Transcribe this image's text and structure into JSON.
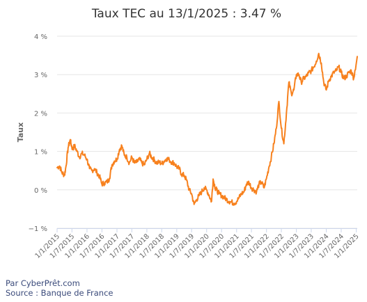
{
  "chart_data": {
    "type": "line",
    "title": "Taux TEC au 13/1/2025 : 3.47 %",
    "ylabel": "Taux",
    "xlabel": "",
    "ylim": [
      -1,
      4
    ],
    "y_ticks": [
      "−1 %",
      "0 %",
      "1 %",
      "2 %",
      "3 %",
      "4 %"
    ],
    "y_tick_values": [
      -1,
      0,
      1,
      2,
      3,
      4
    ],
    "x_tick_labels": [
      "1/1/2015",
      "1/7/2015",
      "1/1/2016",
      "1/7/2016",
      "1/1/2017",
      "1/7/2017",
      "1/1/2018",
      "1/7/2018",
      "1/1/2019",
      "1/7/2019",
      "1/1/2020",
      "1/7/2020",
      "1/1/2021",
      "1/7/2021",
      "1/1/2022",
      "1/7/2022",
      "1/1/2023",
      "1/7/2023",
      "1/1/2024",
      "1/7/2024",
      "1/1/2025"
    ],
    "x_range": [
      "2015-01-01",
      "2025-01-13"
    ],
    "grid": true,
    "line_color": "#f7811e",
    "series": [
      {
        "points": [
          [
            "2015-01-01",
            0.58
          ],
          [
            "2015-02-01",
            0.62
          ],
          [
            "2015-03-01",
            0.45
          ],
          [
            "2015-04-01",
            0.38
          ],
          [
            "2015-04-20",
            0.62
          ],
          [
            "2015-05-15",
            1.1
          ],
          [
            "2015-06-10",
            1.3
          ],
          [
            "2015-06-20",
            1.2
          ],
          [
            "2015-07-10",
            1.05
          ],
          [
            "2015-08-01",
            1.15
          ],
          [
            "2015-09-01",
            1.0
          ],
          [
            "2015-10-01",
            0.85
          ],
          [
            "2015-11-01",
            0.95
          ],
          [
            "2015-12-01",
            0.9
          ],
          [
            "2016-01-01",
            0.8
          ],
          [
            "2016-02-01",
            0.55
          ],
          [
            "2016-03-01",
            0.5
          ],
          [
            "2016-04-01",
            0.55
          ],
          [
            "2016-05-01",
            0.45
          ],
          [
            "2016-06-01",
            0.35
          ],
          [
            "2016-07-01",
            0.15
          ],
          [
            "2016-08-01",
            0.18
          ],
          [
            "2016-09-01",
            0.2
          ],
          [
            "2016-10-01",
            0.3
          ],
          [
            "2016-11-01",
            0.65
          ],
          [
            "2016-12-01",
            0.75
          ],
          [
            "2017-01-01",
            0.8
          ],
          [
            "2017-02-01",
            1.05
          ],
          [
            "2017-03-01",
            1.15
          ],
          [
            "2017-04-01",
            0.9
          ],
          [
            "2017-05-01",
            0.85
          ],
          [
            "2017-06-01",
            0.7
          ],
          [
            "2017-07-01",
            0.85
          ],
          [
            "2017-08-01",
            0.7
          ],
          [
            "2017-09-01",
            0.72
          ],
          [
            "2017-10-01",
            0.8
          ],
          [
            "2017-11-01",
            0.7
          ],
          [
            "2017-12-01",
            0.65
          ],
          [
            "2018-01-01",
            0.8
          ],
          [
            "2018-02-01",
            0.95
          ],
          [
            "2018-03-01",
            0.85
          ],
          [
            "2018-04-01",
            0.78
          ],
          [
            "2018-05-01",
            0.7
          ],
          [
            "2018-06-01",
            0.72
          ],
          [
            "2018-07-01",
            0.68
          ],
          [
            "2018-08-01",
            0.75
          ],
          [
            "2018-09-01",
            0.82
          ],
          [
            "2018-10-01",
            0.78
          ],
          [
            "2018-11-01",
            0.72
          ],
          [
            "2018-12-01",
            0.7
          ],
          [
            "2019-01-01",
            0.6
          ],
          [
            "2019-02-01",
            0.55
          ],
          [
            "2019-03-01",
            0.4
          ],
          [
            "2019-04-01",
            0.38
          ],
          [
            "2019-05-01",
            0.25
          ],
          [
            "2019-06-01",
            0.0
          ],
          [
            "2019-07-01",
            -0.1
          ],
          [
            "2019-08-01",
            -0.38
          ],
          [
            "2019-09-01",
            -0.25
          ],
          [
            "2019-10-01",
            -0.15
          ],
          [
            "2019-11-01",
            -0.05
          ],
          [
            "2019-12-01",
            0.05
          ],
          [
            "2020-01-01",
            0.0
          ],
          [
            "2020-02-01",
            -0.15
          ],
          [
            "2020-03-01",
            -0.3
          ],
          [
            "2020-03-20",
            0.28
          ],
          [
            "2020-04-15",
            0.05
          ],
          [
            "2020-05-01",
            0.0
          ],
          [
            "2020-06-01",
            -0.1
          ],
          [
            "2020-07-01",
            -0.15
          ],
          [
            "2020-08-01",
            -0.2
          ],
          [
            "2020-09-01",
            -0.25
          ],
          [
            "2020-10-01",
            -0.3
          ],
          [
            "2020-11-01",
            -0.32
          ],
          [
            "2020-12-01",
            -0.35
          ],
          [
            "2021-01-01",
            -0.3
          ],
          [
            "2021-02-01",
            -0.2
          ],
          [
            "2021-03-01",
            -0.1
          ],
          [
            "2021-04-01",
            -0.05
          ],
          [
            "2021-05-01",
            0.15
          ],
          [
            "2021-06-01",
            0.2
          ],
          [
            "2021-07-01",
            0.05
          ],
          [
            "2021-08-01",
            0.0
          ],
          [
            "2021-09-01",
            -0.05
          ],
          [
            "2021-10-01",
            0.15
          ],
          [
            "2021-11-01",
            0.2
          ],
          [
            "2021-12-01",
            0.05
          ],
          [
            "2022-01-01",
            0.3
          ],
          [
            "2022-02-01",
            0.6
          ],
          [
            "2022-03-01",
            0.85
          ],
          [
            "2022-04-01",
            1.2
          ],
          [
            "2022-05-01",
            1.6
          ],
          [
            "2022-06-01",
            2.3
          ],
          [
            "2022-07-01",
            1.6
          ],
          [
            "2022-08-01",
            1.2
          ],
          [
            "2022-09-01",
            2.0
          ],
          [
            "2022-10-01",
            2.8
          ],
          [
            "2022-11-01",
            2.5
          ],
          [
            "2022-12-01",
            2.6
          ],
          [
            "2023-01-01",
            3.0
          ],
          [
            "2023-02-01",
            3.0
          ],
          [
            "2023-03-01",
            2.8
          ],
          [
            "2023-04-01",
            2.9
          ],
          [
            "2023-05-01",
            2.95
          ],
          [
            "2023-06-01",
            3.05
          ],
          [
            "2023-07-01",
            3.1
          ],
          [
            "2023-08-01",
            3.2
          ],
          [
            "2023-09-01",
            3.35
          ],
          [
            "2023-10-01",
            3.55
          ],
          [
            "2023-11-01",
            3.3
          ],
          [
            "2023-12-01",
            2.8
          ],
          [
            "2024-01-01",
            2.6
          ],
          [
            "2024-02-01",
            2.85
          ],
          [
            "2024-03-01",
            2.95
          ],
          [
            "2024-04-01",
            3.05
          ],
          [
            "2024-05-01",
            3.1
          ],
          [
            "2024-06-01",
            3.2
          ],
          [
            "2024-07-01",
            3.05
          ],
          [
            "2024-08-01",
            2.9
          ],
          [
            "2024-09-01",
            2.95
          ],
          [
            "2024-10-01",
            3.05
          ],
          [
            "2024-11-01",
            3.1
          ],
          [
            "2024-12-01",
            2.9
          ],
          [
            "2025-01-13",
            3.47
          ]
        ]
      }
    ]
  },
  "credits": {
    "line1": "Par CyberPrêt.com",
    "line2": "Source : Banque de France"
  }
}
